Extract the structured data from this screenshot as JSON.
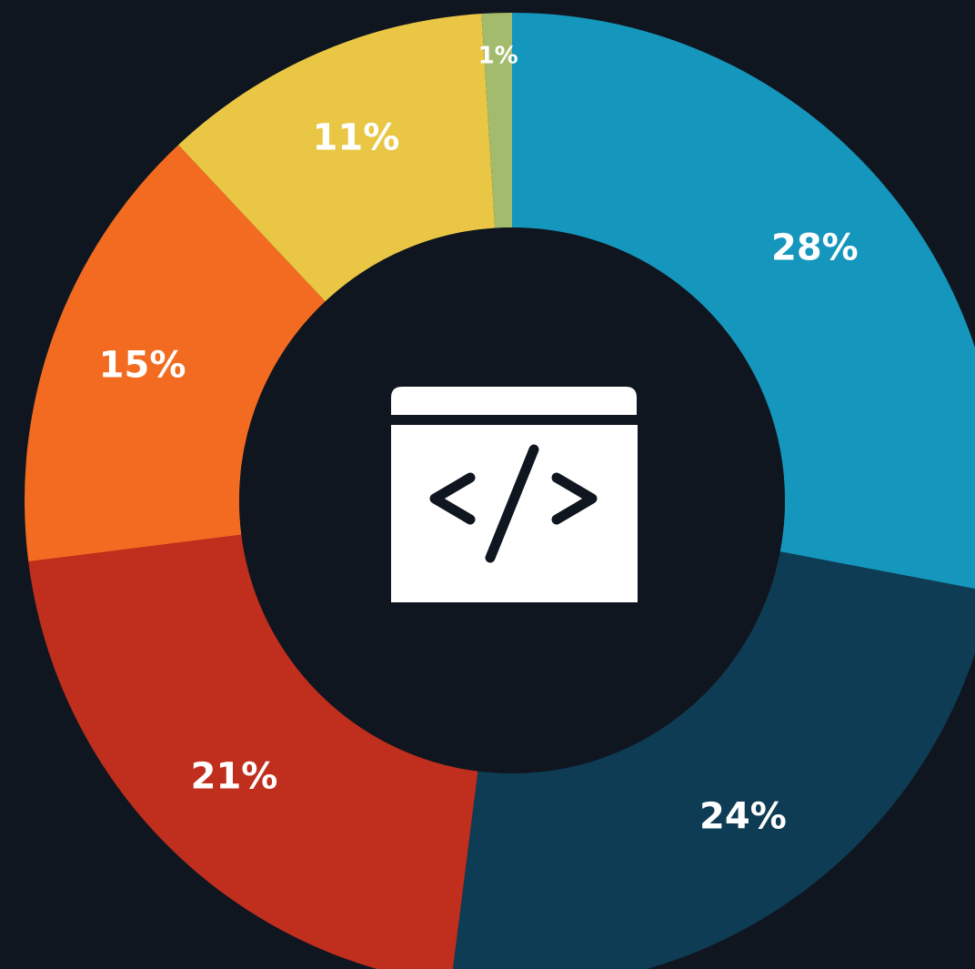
{
  "chart_data": {
    "type": "donut",
    "values": [
      28,
      24,
      21,
      15,
      11,
      1
    ],
    "value_labels": [
      "28%",
      "24%",
      "21%",
      "15%",
      "11%",
      "1%"
    ],
    "colors": [
      "#1596bd",
      "#0e3c55",
      "#c02e1d",
      "#f26b21",
      "#e9c744",
      "#a3bb6d"
    ]
  }
}
